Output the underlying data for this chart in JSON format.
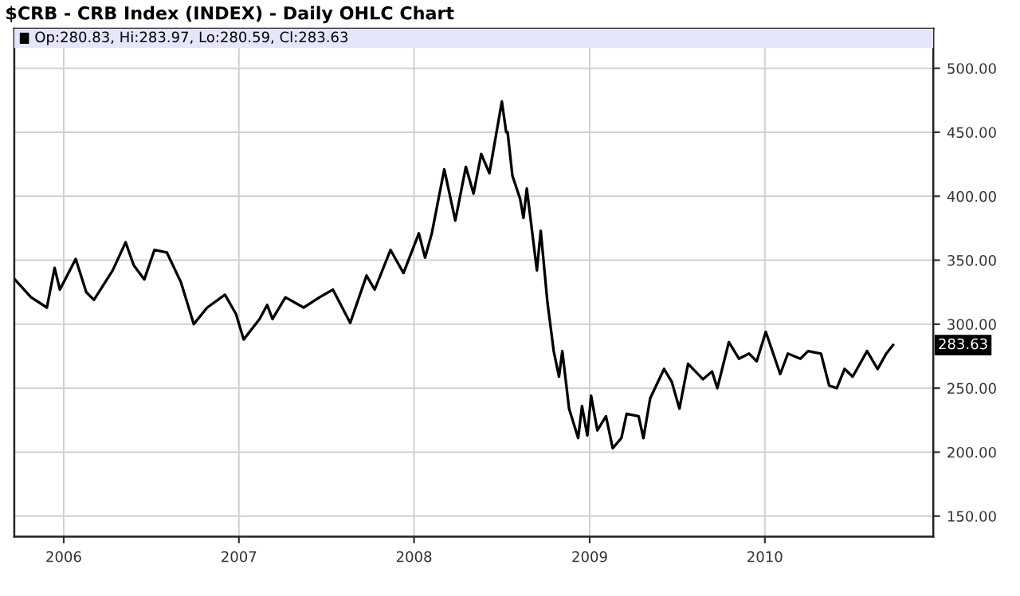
{
  "chart_data": {
    "type": "line",
    "title": "$CRB - CRB Index (INDEX) - Daily OHLC Chart",
    "annotations": [
      "Op:280.83, Hi:283.97, Lo:280.59, Cl:283.63",
      "283.63"
    ],
    "series": [
      {
        "color": "#000000",
        "x": [
          "2005-09-21",
          "2005-10-25",
          "2005-11-27",
          "2005-12-13",
          "2005-12-24",
          "2006-01-26",
          "2006-02-17",
          "2006-03-05",
          "2006-04-13",
          "2006-05-10",
          "2006-05-27",
          "2006-06-18",
          "2006-07-09",
          "2006-08-04",
          "2006-09-02",
          "2006-09-29",
          "2006-10-27",
          "2006-12-03",
          "2006-12-26",
          "2007-01-11",
          "2007-02-13",
          "2007-03-01",
          "2007-03-12",
          "2007-04-08",
          "2007-05-16",
          "2007-06-18",
          "2007-07-16",
          "2007-08-21",
          "2007-09-24",
          "2007-10-11",
          "2007-11-13",
          "2007-12-10",
          "2008-01-11",
          "2008-01-24",
          "2008-02-07",
          "2008-03-04",
          "2008-03-27",
          "2008-04-18",
          "2008-05-04",
          "2008-05-20",
          "2008-06-06",
          "2008-07-02",
          "2008-07-11",
          "2008-07-14",
          "2008-07-24",
          "2008-08-09",
          "2008-08-16",
          "2008-08-23",
          "2008-09-13",
          "2008-09-21",
          "2008-10-05",
          "2008-10-18",
          "2008-10-29",
          "2008-11-05",
          "2008-11-19",
          "2008-12-08",
          "2008-12-16",
          "2008-12-27",
          "2009-01-04",
          "2009-01-17",
          "2009-02-04",
          "2009-02-18",
          "2009-03-08",
          "2009-03-19",
          "2009-04-13",
          "2009-04-23",
          "2009-05-07",
          "2009-06-05",
          "2009-06-21",
          "2009-07-07",
          "2009-07-25",
          "2009-08-25",
          "2009-09-13",
          "2009-09-24",
          "2009-10-18",
          "2009-11-08",
          "2009-11-29",
          "2009-12-15",
          "2010-01-03",
          "2010-02-02",
          "2010-02-18",
          "2010-03-16",
          "2010-04-01",
          "2010-04-28",
          "2010-05-15",
          "2010-05-31",
          "2010-06-16",
          "2010-07-03",
          "2010-08-02",
          "2010-08-24",
          "2010-09-11",
          "2010-09-25"
        ],
        "values": [
          335,
          321,
          313,
          344,
          327,
          351,
          325,
          319,
          342,
          364,
          346,
          335,
          358,
          356,
          333,
          300,
          313,
          323,
          308,
          288,
          304,
          315,
          304,
          321,
          313,
          321,
          327,
          301,
          338,
          327,
          358,
          340,
          371,
          352,
          371,
          421,
          381,
          423,
          402,
          433,
          418,
          474,
          450,
          450,
          416,
          398,
          383,
          406,
          342,
          373,
          317,
          279,
          259,
          279,
          234,
          211,
          236,
          213,
          244,
          217,
          228,
          203,
          211,
          230,
          228,
          211,
          242,
          265,
          255,
          234,
          269,
          257,
          263,
          250,
          286,
          273,
          277,
          271,
          294,
          261,
          277,
          273,
          279,
          277,
          252,
          250,
          265,
          259,
          279,
          265,
          277,
          283.63
        ]
      }
    ],
    "xlim": [
      "2005-09-20",
      "2010-12-18"
    ],
    "xticks": [
      {
        "value": "2006",
        "label": "2006"
      },
      {
        "value": "2007",
        "label": "2007"
      },
      {
        "value": "2008",
        "label": "2008"
      },
      {
        "value": "2009",
        "label": "2009"
      },
      {
        "value": "2010",
        "label": "2010"
      }
    ],
    "ylim": [
      134,
      531
    ],
    "yticks": [
      {
        "value": 150,
        "label": "150.00"
      },
      {
        "value": 200,
        "label": "200.00"
      },
      {
        "value": 250,
        "label": "250.00"
      },
      {
        "value": 300,
        "label": "300.00"
      },
      {
        "value": 350,
        "label": "350.00"
      },
      {
        "value": 400,
        "label": "400.00"
      },
      {
        "value": 450,
        "label": "450.00"
      },
      {
        "value": 500,
        "label": "500.00"
      }
    ],
    "grid": true,
    "line_style": "solid"
  }
}
